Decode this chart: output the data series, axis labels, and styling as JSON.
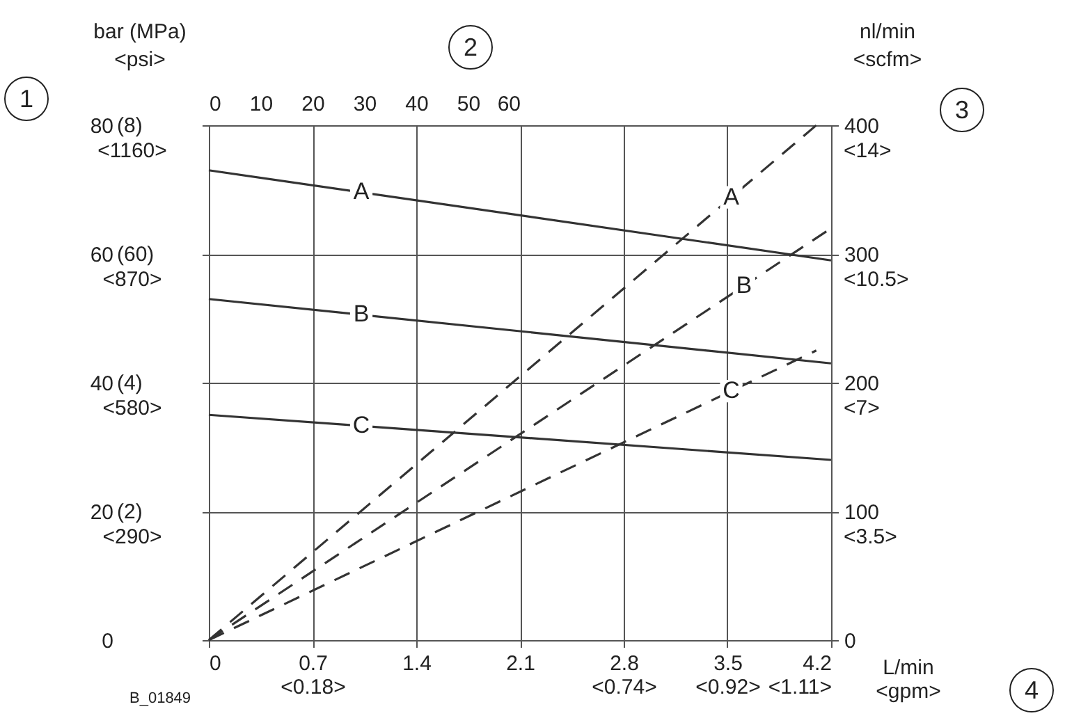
{
  "chart_data": {
    "type": "line",
    "ylabel": "bar (MPa)\n<psi>",
    "y2label": "nl/min\n<scfm>",
    "xlabel": "L/min\n<gpm>",
    "xlim": [
      0,
      4.2
    ],
    "xticks": [
      0,
      {
        "value": 0.7,
        "label": "0.7\n<0.18>"
      },
      1.4,
      2.1,
      {
        "value": 2.8,
        "label": "2.8\n<0.74>"
      },
      {
        "value": 3.5,
        "label": "3.5\n<0.92>"
      },
      {
        "value": 4.2,
        "label": "4.2\n<1.11>"
      }
    ],
    "x2lim": [
      0,
      60
    ],
    "x2ticks": [
      0,
      10,
      20,
      30,
      40,
      50,
      60
    ],
    "ylim": [
      0,
      80
    ],
    "yticks": [
      0,
      20,
      40,
      60,
      80
    ],
    "y2lim": [
      0,
      400
    ],
    "y2ticks": [
      0,
      100,
      200,
      300,
      400
    ],
    "grid": true,
    "series": [
      {
        "name": "A",
        "color": "#333333",
        "line_style": "solid",
        "x": [
          0,
          4.2
        ],
        "values": [
          73,
          59
        ]
      },
      {
        "name": "B",
        "color": "#333333",
        "line_style": "solid",
        "x": [
          0,
          4.2
        ],
        "values": [
          53,
          43
        ]
      },
      {
        "name": "C",
        "color": "#333333",
        "line_style": "solid",
        "x": [
          0,
          4.2
        ],
        "values": [
          35,
          28
        ]
      },
      {
        "name": "A",
        "color": "#333333",
        "line_style": "dashed",
        "axis": "y2",
        "x": [
          0,
          4.1
        ],
        "values": [
          0,
          400
        ]
      },
      {
        "name": "B",
        "color": "#333333",
        "line_style": "dashed",
        "axis": "y2",
        "x": [
          0,
          4.2
        ],
        "values": [
          0,
          320
        ]
      },
      {
        "name": "C",
        "color": "#333333",
        "line_style": "dashed",
        "axis": "y2",
        "x": [
          0,
          4.1
        ],
        "values": [
          0,
          225
        ]
      }
    ],
    "annotations": [
      "1",
      "2",
      "3",
      "4",
      "B_01849",
      "(2)",
      "<290>",
      "(4)",
      "<580>",
      "(60)",
      "<870>",
      "(8)",
      "<1160>",
      "<3.5>",
      "<7>",
      "<10.5>",
      "<14>"
    ]
  }
}
